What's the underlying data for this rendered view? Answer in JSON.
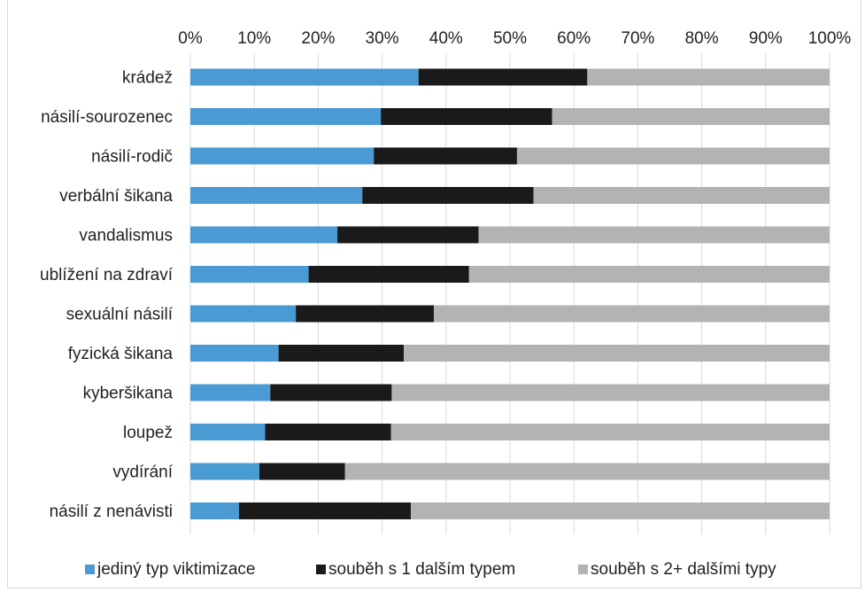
{
  "chart_data": {
    "type": "bar",
    "orientation": "horizontal",
    "stacked": "percent",
    "categories": [
      "krádež",
      "násilí-sourozenec",
      "násilí-rodič",
      "verbální šikana",
      "vandalismus",
      "ublížení na zdraví",
      "sexuální násilí",
      "fyzická šikana",
      "kyberšikana",
      "loupež",
      "vydírání",
      "násilí z nenávisti"
    ],
    "series": [
      {
        "name": "jediný typ viktimizace",
        "color": "#4a9ad4",
        "values": [
          35.7,
          29.8,
          28.7,
          26.9,
          23.0,
          18.5,
          16.5,
          13.8,
          12.5,
          11.7,
          10.8,
          7.6
        ]
      },
      {
        "name": "souběh s 1 dalším typem",
        "color": "#1a1a1a",
        "values": [
          26.4,
          26.8,
          22.4,
          26.8,
          22.1,
          25.1,
          21.6,
          19.6,
          19.0,
          19.7,
          13.4,
          26.9
        ]
      },
      {
        "name": "souběh s 2+ dalšími typy",
        "color": "#b3b3b3",
        "values": [
          37.9,
          43.4,
          48.9,
          46.3,
          54.9,
          56.4,
          61.9,
          66.6,
          68.5,
          68.6,
          75.8,
          65.5
        ]
      }
    ],
    "x_ticks": [
      "0%",
      "10%",
      "20%",
      "30%",
      "40%",
      "50%",
      "60%",
      "70%",
      "80%",
      "90%",
      "100%"
    ],
    "xlim": [
      0,
      100
    ],
    "x_axis_position": "top",
    "grid": true,
    "legend_position": "bottom"
  }
}
